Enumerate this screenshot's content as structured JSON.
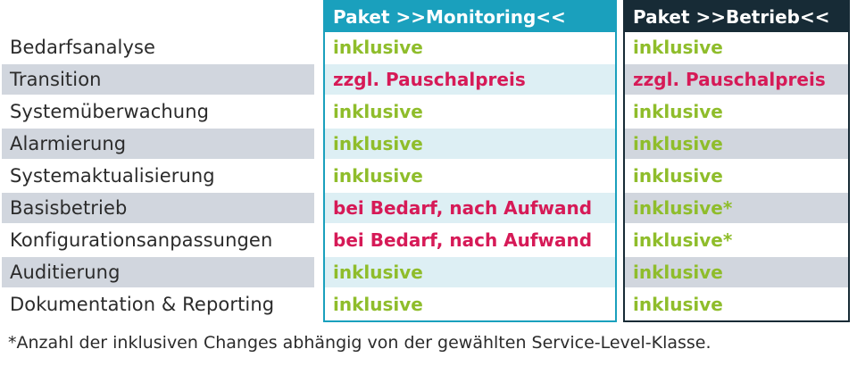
{
  "packages": {
    "monitoring": {
      "title": "Paket >>Monitoring<<",
      "color": "#1aa0bd"
    },
    "betrieb": {
      "title": "Paket >>Betrieb<<",
      "color": "#172b36"
    }
  },
  "rows": [
    {
      "label": "Bedarfsanalyse",
      "monitoring": "inklusive",
      "betrieb": "inklusive"
    },
    {
      "label": "Transition",
      "monitoring": "zzgl. Pauschalpreis",
      "betrieb": "zzgl. Pauschalpreis"
    },
    {
      "label": "Systemüberwachung",
      "monitoring": "inklusive",
      "betrieb": "inklusive"
    },
    {
      "label": "Alarmierung",
      "monitoring": "inklusive",
      "betrieb": "inklusive"
    },
    {
      "label": "Systemaktualisierung",
      "monitoring": "inklusive",
      "betrieb": "inklusive"
    },
    {
      "label": "Basisbetrieb",
      "monitoring": "bei Bedarf, nach Aufwand",
      "betrieb": "inklusive*"
    },
    {
      "label": "Konfigurationsanpassungen",
      "monitoring": "bei Bedarf, nach Aufwand",
      "betrieb": "inklusive*"
    },
    {
      "label": "Auditierung",
      "monitoring": "inklusive",
      "betrieb": "inklusive"
    },
    {
      "label": "Dokumentation & Reporting",
      "monitoring": "inklusive",
      "betrieb": "inklusive"
    }
  ],
  "footnote": "*Anzahl der inklusiven Changes abhängig von der gewählten Service-Level-Klasse.",
  "colors": {
    "included": "#8fbd2b",
    "extra_cost": "#d61a57",
    "label_shade": "#d1d6de",
    "monitoring_shade": "#ddeff4"
  }
}
